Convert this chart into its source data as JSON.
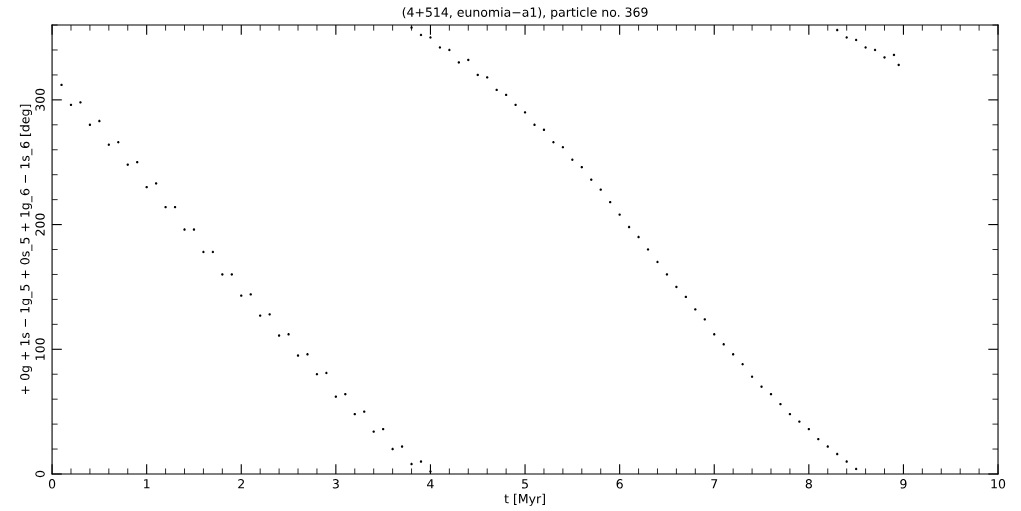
{
  "chart_data": {
    "type": "scatter",
    "title": "(4+514, eunomia−a1), particle no. 369",
    "xlabel": "t [Myr]",
    "ylabel": "+ 0g + 1s − 1g_5 + 0s_5 + 1g_6 − 1s_6 [deg]",
    "xlim": [
      0,
      10
    ],
    "xticks": [
      0,
      1,
      2,
      3,
      4,
      5,
      6,
      7,
      8,
      9,
      10
    ],
    "ylim": [
      0,
      360
    ],
    "yticks": [
      0,
      100,
      200,
      300
    ],
    "grid": false,
    "marker": "circle",
    "series": [
      {
        "color": "#000000",
        "x": [
          0.1,
          0.2,
          0.3,
          0.4,
          0.5,
          0.6,
          0.7,
          0.8,
          0.9,
          1.0,
          1.1,
          1.2,
          1.3,
          1.4,
          1.5,
          1.6,
          1.7,
          1.8,
          1.9,
          2.0,
          2.1,
          2.2,
          2.3,
          2.4,
          2.5,
          2.6,
          2.7,
          2.8,
          2.9,
          3.0,
          3.1,
          3.2,
          3.3,
          3.4,
          3.5,
          3.6,
          3.7,
          3.8,
          3.9,
          4.0,
          3.8,
          3.9,
          4.0,
          4.1,
          4.2,
          4.3,
          4.4,
          4.5,
          4.6,
          4.7,
          4.8,
          4.9,
          5.0,
          5.1,
          5.2,
          5.3,
          5.4,
          5.5,
          5.6,
          5.7,
          5.8,
          5.9,
          6.0,
          6.1,
          6.2,
          6.3,
          6.4,
          6.5,
          6.6,
          6.7,
          6.8,
          6.9,
          7.0,
          7.1,
          7.2,
          7.3,
          7.4,
          7.5,
          7.6,
          7.7,
          7.8,
          7.9,
          8.0,
          8.1,
          8.2,
          8.3,
          8.4,
          8.5,
          8.3,
          8.4,
          8.5,
          8.6,
          8.7,
          8.8,
          8.9,
          8.95
        ],
        "values": [
          312,
          296,
          298,
          280,
          283,
          264,
          266,
          248,
          250,
          230,
          233,
          214,
          214,
          196,
          196,
          178,
          178,
          160,
          160,
          143,
          144,
          127,
          128,
          111,
          112,
          95,
          96,
          80,
          81,
          62,
          64,
          48,
          50,
          34,
          36,
          20,
          22,
          8,
          10,
          2,
          358,
          352,
          350,
          342,
          340,
          330,
          332,
          320,
          318,
          308,
          304,
          296,
          290,
          280,
          276,
          266,
          262,
          252,
          246,
          236,
          228,
          218,
          208,
          198,
          190,
          180,
          170,
          160,
          150,
          142,
          132,
          124,
          112,
          104,
          96,
          88,
          78,
          70,
          64,
          56,
          48,
          42,
          36,
          28,
          22,
          16,
          10,
          4,
          356,
          350,
          348,
          342,
          340,
          334,
          336,
          328
        ]
      }
    ]
  }
}
